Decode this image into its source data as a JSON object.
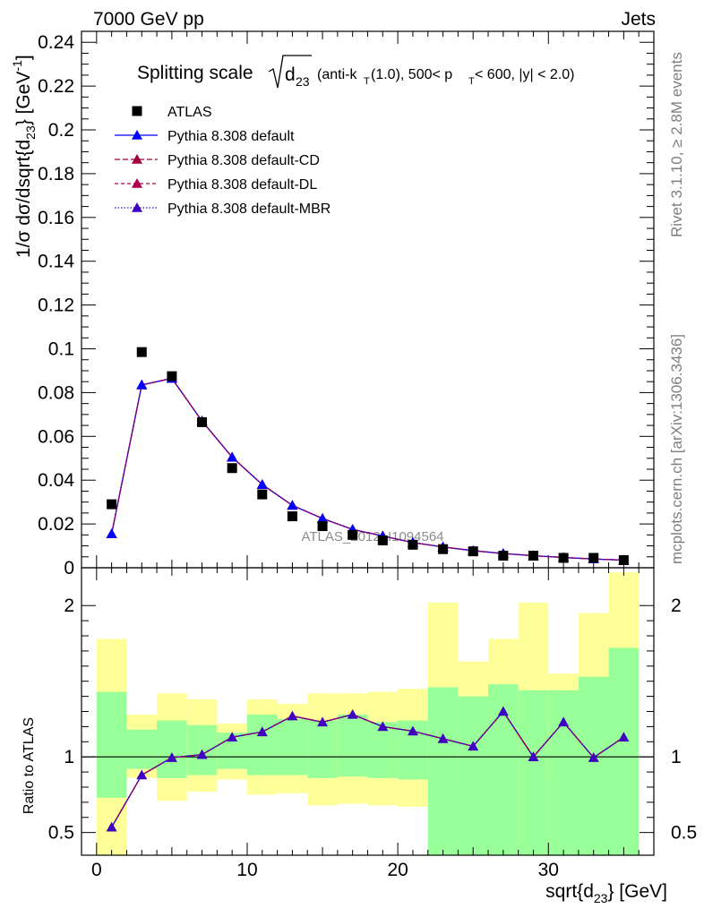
{
  "header": {
    "left": "7000 GeV pp",
    "right": "Jets"
  },
  "side_labels": {
    "rivet": "Rivet 3.1.10, ≥ 2.8M events",
    "mcplots": "mcplots.cern.ch [arXiv:1306.3436]"
  },
  "watermark": "ATLAS_2012_I1094564",
  "title": {
    "prefix": "Splitting scale",
    "var": "d",
    "var_sub": "23",
    "p1": "(anti-k",
    "p1_sub": "T",
    "p2": "(1.0), 500< p",
    "p2_sub": "T",
    "p3": " < 600, |y| < 2.0)"
  },
  "y_axis_label": {
    "main": "1/σ dσ/dsqrt{d",
    "sub": "23",
    "mid": "} [GeV",
    "sup": "-1",
    "end": "]"
  },
  "x_axis_label": {
    "main": "sqrt{d",
    "sub": "23",
    "end": "} [GeV]"
  },
  "ratio_ylabel": "Ratio to ATLAS",
  "colors": {
    "data": "#000000",
    "default": "#0000ff",
    "cd": "#a0003c",
    "dl": "#b0004f",
    "mbr": "#4000c0",
    "band_inner": "#99ff99",
    "band_outer": "#ffff99"
  },
  "chart_data": {
    "type": "scatter",
    "x_range": [
      -1,
      37
    ],
    "main_ylim": [
      0,
      0.245
    ],
    "main_yticks": [
      0,
      0.02,
      0.04,
      0.06,
      0.08,
      0.1,
      0.12,
      0.14,
      0.16,
      0.18,
      0.2,
      0.22,
      0.24
    ],
    "main_ytick_labels": [
      "0",
      "0.02",
      "0.04",
      "0.06",
      "0.08",
      "0.1",
      "0.12",
      "0.14",
      "0.16",
      "0.18",
      "0.2",
      "0.22",
      "0.24"
    ],
    "ratio_ylim": [
      0.35,
      2.25
    ],
    "ratio_yticks": [
      0.5,
      1,
      2
    ],
    "ratio_ytick_labels": [
      "0.5",
      "1",
      "2"
    ],
    "xticks": [
      0,
      10,
      20,
      30
    ],
    "xtick_labels": [
      "0",
      "10",
      "20",
      "30"
    ],
    "bin_edges": [
      0,
      2,
      4,
      6,
      8,
      10,
      12,
      14,
      16,
      18,
      20,
      22,
      24,
      26,
      28,
      30,
      32,
      34,
      36
    ],
    "x": [
      1,
      3,
      5,
      7,
      9,
      11,
      13,
      15,
      17,
      19,
      21,
      23,
      25,
      27,
      29,
      31,
      33,
      35
    ],
    "data": {
      "name": "ATLAS",
      "values": [
        0.029,
        0.0985,
        0.0875,
        0.0665,
        0.0455,
        0.0335,
        0.0235,
        0.019,
        0.015,
        0.0125,
        0.0105,
        0.0085,
        0.0075,
        0.0055,
        0.0055,
        0.0045,
        0.0045,
        0.0035
      ]
    },
    "series": [
      {
        "name": "Pythia 8.308 default",
        "key": "default",
        "dash": "",
        "values": [
          0.0155,
          0.0835,
          0.0865,
          0.067,
          0.0505,
          0.038,
          0.0285,
          0.0225,
          0.0175,
          0.0145,
          0.0115,
          0.0095,
          0.0078,
          0.0065,
          0.0055,
          0.0047,
          0.004,
          0.0035
        ]
      },
      {
        "name": "Pythia 8.308 default-CD",
        "key": "cd",
        "dash": "6,3",
        "values": [
          0.0155,
          0.0835,
          0.0865,
          0.067,
          0.0505,
          0.038,
          0.0285,
          0.0225,
          0.0175,
          0.0145,
          0.0115,
          0.0095,
          0.0078,
          0.0065,
          0.0055,
          0.0047,
          0.004,
          0.0035
        ]
      },
      {
        "name": "Pythia 8.308 default-DL",
        "key": "dl",
        "dash": "4,3",
        "values": [
          0.0155,
          0.0835,
          0.0865,
          0.067,
          0.0505,
          0.038,
          0.0285,
          0.0225,
          0.0175,
          0.0145,
          0.0115,
          0.0095,
          0.0078,
          0.0065,
          0.0055,
          0.0047,
          0.004,
          0.0035
        ]
      },
      {
        "name": "Pythia 8.308 default-MBR",
        "key": "mbr",
        "dash": "1.5,2",
        "values": [
          0.0155,
          0.0835,
          0.0865,
          0.067,
          0.0505,
          0.038,
          0.0285,
          0.0225,
          0.0175,
          0.0145,
          0.0115,
          0.0095,
          0.0078,
          0.0065,
          0.0055,
          0.0047,
          0.004,
          0.0035
        ]
      }
    ],
    "ratio": [
      0.535,
      0.88,
      0.995,
      1.015,
      1.13,
      1.165,
      1.27,
      1.23,
      1.28,
      1.2,
      1.17,
      1.12,
      1.07,
      1.3,
      1.0,
      1.23,
      0.995,
      1.13
    ],
    "band_inner": {
      "low": [
        0.73,
        0.92,
        0.86,
        0.88,
        0.92,
        0.88,
        0.88,
        0.86,
        0.87,
        0.86,
        0.85,
        0.35,
        0.35,
        0.35,
        0.35,
        0.35,
        0.35,
        0.35
      ],
      "high": [
        1.43,
        1.18,
        1.24,
        1.21,
        1.16,
        1.28,
        1.25,
        1.24,
        1.28,
        1.23,
        1.24,
        1.46,
        1.4,
        1.48,
        1.44,
        1.44,
        1.53,
        1.72
      ]
    },
    "band_outer": {
      "low": [
        0.35,
        0.86,
        0.71,
        0.77,
        0.85,
        0.75,
        0.76,
        0.68,
        0.69,
        0.68,
        0.67,
        0.47,
        0.78,
        0.68,
        0.35,
        0.83,
        0.55,
        0.35
      ],
      "high": [
        1.78,
        1.28,
        1.42,
        1.38,
        1.22,
        1.38,
        1.35,
        1.42,
        1.42,
        1.43,
        1.45,
        2.02,
        1.63,
        1.78,
        2.02,
        1.55,
        1.95,
        2.22
      ]
    }
  }
}
